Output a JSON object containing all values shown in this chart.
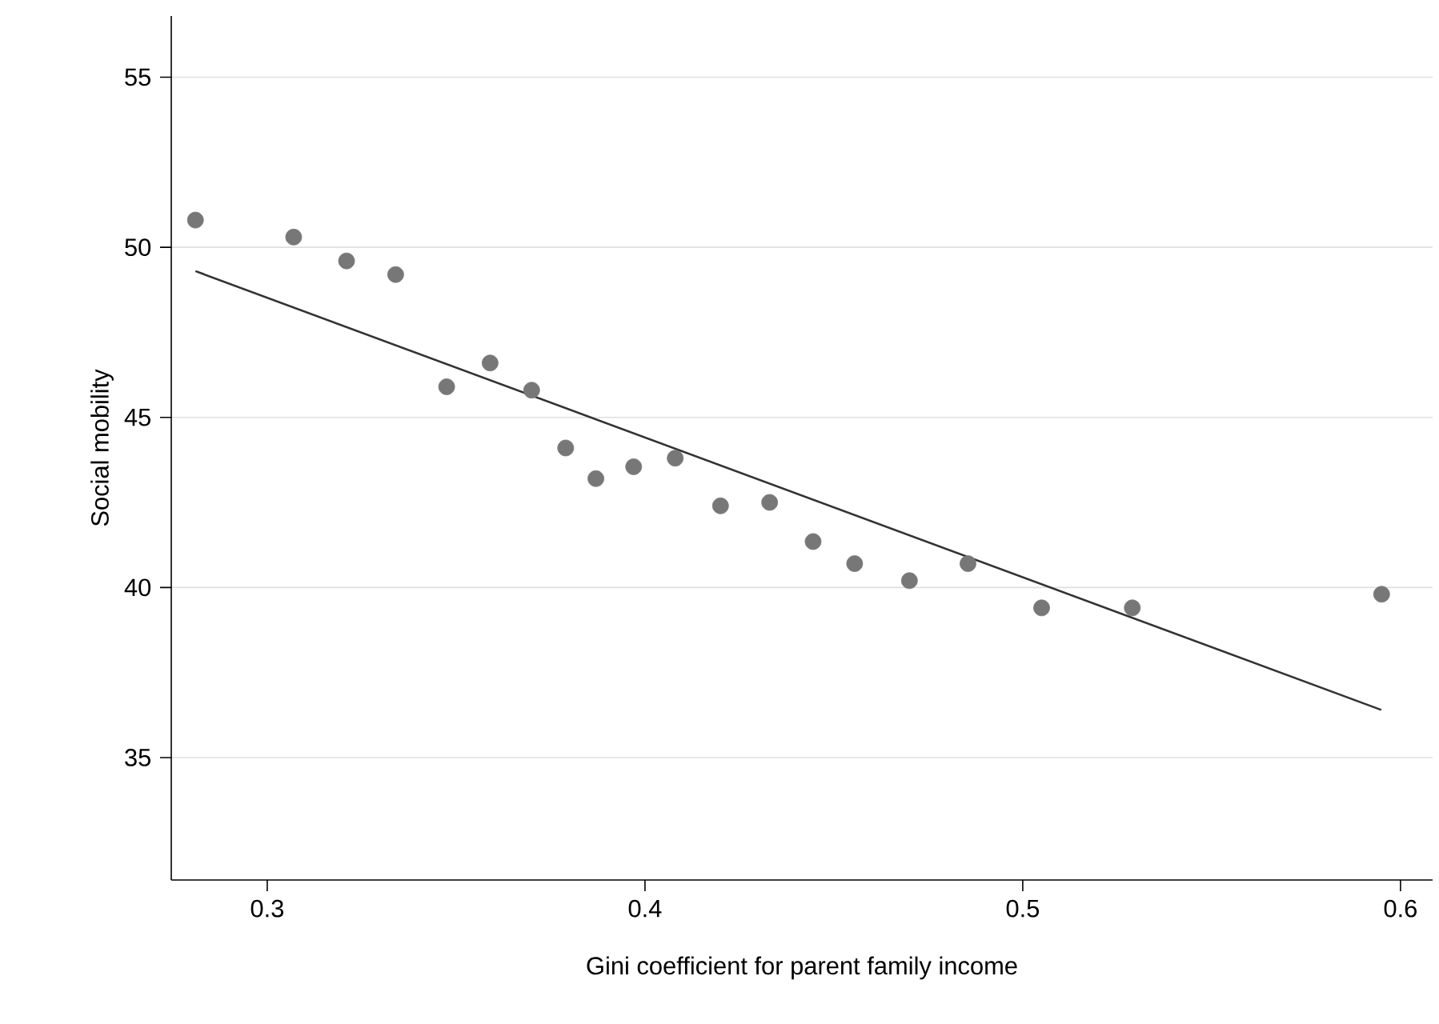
{
  "chart_data": {
    "type": "scatter",
    "xlabel": "Gini coefficient for parent family income",
    "ylabel": "Social mobility",
    "xlim": [
      0.2746,
      0.6085
    ],
    "ylim": [
      31.4,
      56.8
    ],
    "xticks": [
      0.3,
      0.4,
      0.5,
      0.6
    ],
    "yticks": [
      35,
      40,
      45,
      50,
      55
    ],
    "grid": "y",
    "marker": "circle",
    "series": [
      {
        "color": "#777777",
        "x": [
          0.281,
          0.307,
          0.321,
          0.334,
          0.3475,
          0.359,
          0.37,
          0.379,
          0.387,
          0.397,
          0.408,
          0.42,
          0.433,
          0.4445,
          0.4555,
          0.47,
          0.4855,
          0.505,
          0.529,
          0.595
        ],
        "values": [
          50.8,
          50.3,
          49.6,
          49.2,
          45.9,
          46.6,
          45.8,
          44.1,
          43.2,
          43.55,
          43.8,
          42.4,
          42.5,
          41.35,
          40.7,
          40.2,
          40.7,
          39.4,
          39.4,
          39.8
        ]
      },
      {
        "type": "line",
        "color": "#333333",
        "marker": "none",
        "x": [
          0.281,
          0.5949
        ],
        "values": [
          49.3,
          36.4
        ]
      }
    ]
  }
}
